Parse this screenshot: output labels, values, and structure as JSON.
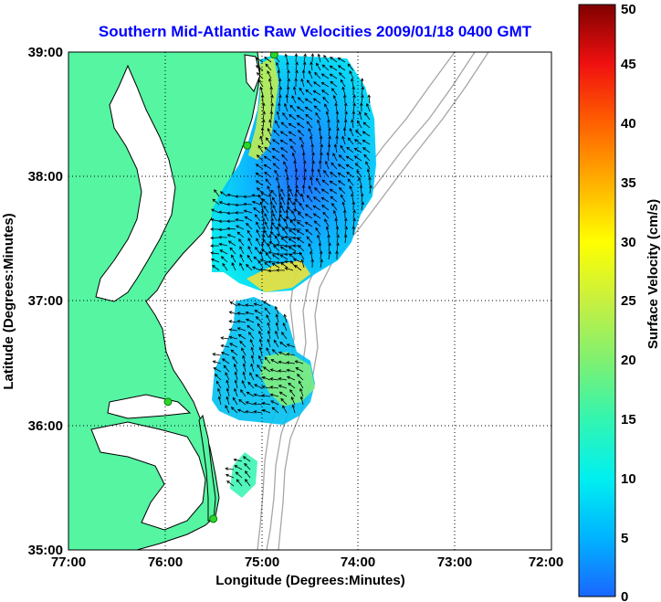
{
  "colors": {
    "land": "#55f5a2",
    "water": "#ffffff",
    "coastline": "#000000",
    "bathymetry": "#a6a6a6",
    "grid": "#000000",
    "title": "#0000ff",
    "site_marker": "#2bd62b",
    "vector": "#000000",
    "colorscale": [
      "#1a66ff",
      "#00b4ff",
      "#00f0f0",
      "#33f5b0",
      "#80f070",
      "#c8f040",
      "#ffff00",
      "#ffb000",
      "#ff6000",
      "#f01010",
      "#a00000",
      "#800000"
    ]
  },
  "chart_data": {
    "type": "map",
    "title": "Southern Mid-Atlantic Raw Velocities 2009/01/18 0400 GMT",
    "xlabel": "Longitude (Degrees:Minutes)",
    "ylabel": "Latitude (Degrees:Minutes)",
    "xlim": [
      -77,
      -72
    ],
    "ylim": [
      35,
      39
    ],
    "x_ticks": [
      {
        "value": -77,
        "label": "77:00"
      },
      {
        "value": -76,
        "label": "76:00"
      },
      {
        "value": -75,
        "label": "75:00"
      },
      {
        "value": -74,
        "label": "74:00"
      },
      {
        "value": -73,
        "label": "73:00"
      },
      {
        "value": -72,
        "label": "72:00"
      }
    ],
    "y_ticks": [
      {
        "value": 35,
        "label": "35:00"
      },
      {
        "value": 36,
        "label": "36:00"
      },
      {
        "value": 37,
        "label": "37:00"
      },
      {
        "value": 38,
        "label": "38:00"
      },
      {
        "value": 39,
        "label": "39:00"
      }
    ],
    "grid": "dotted",
    "colorbar": {
      "label": "Surface Velocity (cm/s)",
      "min": 0,
      "max": 50,
      "ticks": [
        "0",
        "5",
        "10",
        "15",
        "20",
        "25",
        "30",
        "35",
        "40",
        "45",
        "50"
      ],
      "position": "right"
    },
    "sites": [
      {
        "lon": -74.87,
        "lat": 38.98
      },
      {
        "lon": -75.15,
        "lat": 38.25
      },
      {
        "lon": -75.97,
        "lat": 36.19
      },
      {
        "lon": -75.5,
        "lat": 35.25
      }
    ]
  }
}
